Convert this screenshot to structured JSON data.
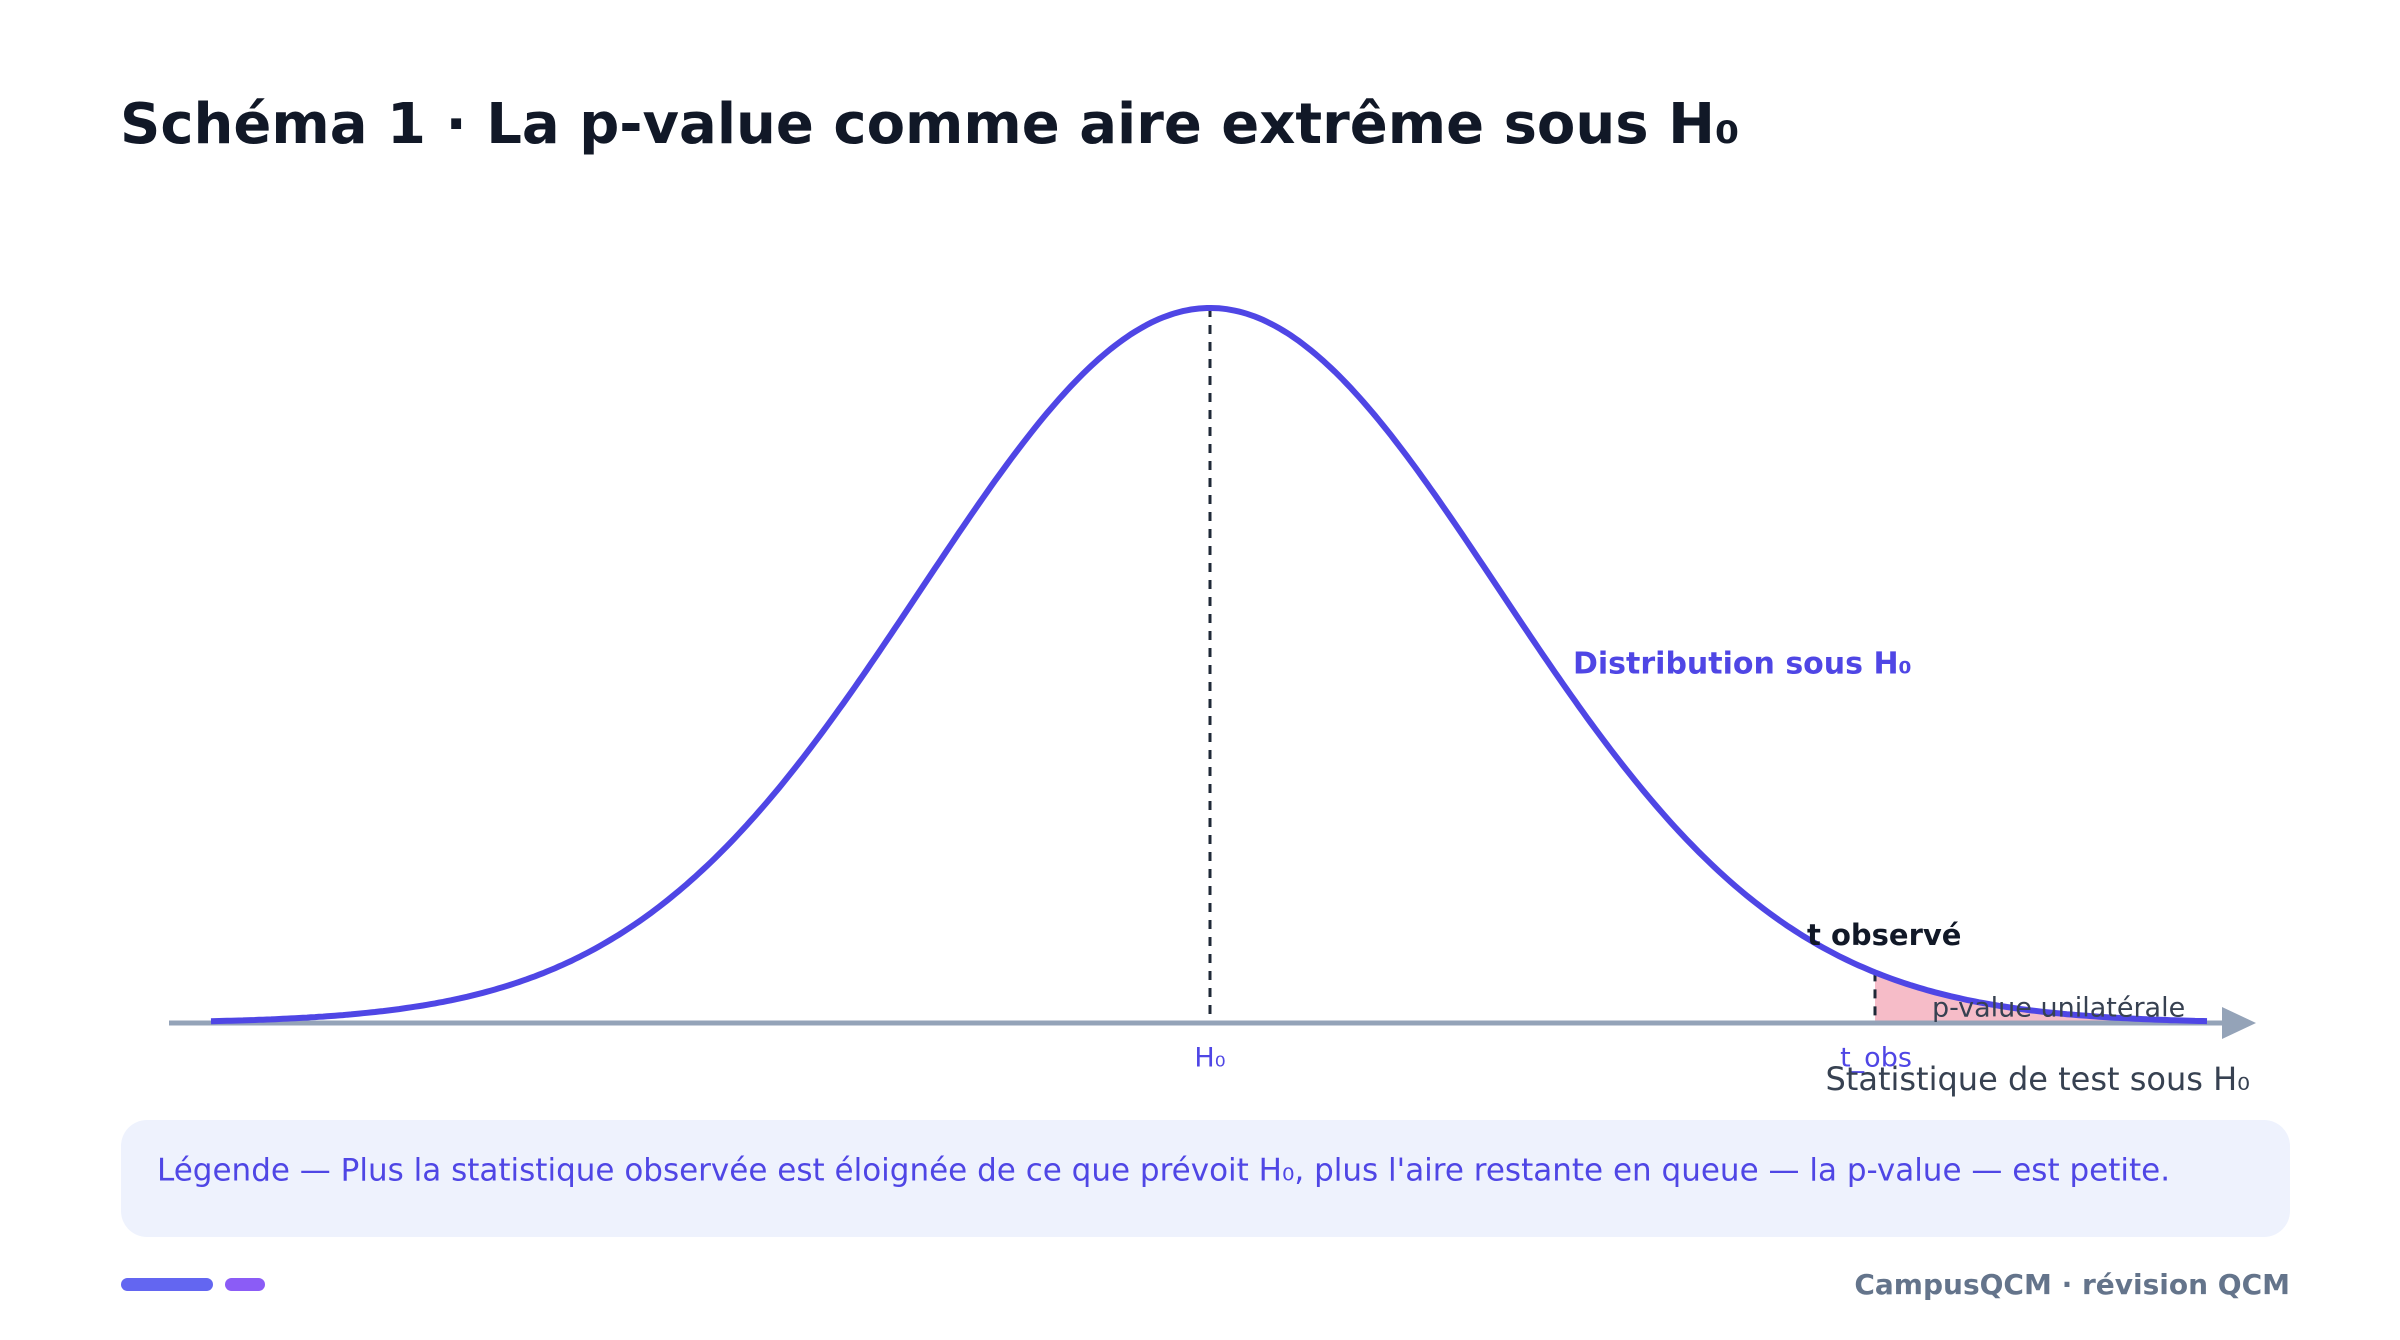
{
  "header": {
    "title": "Schéma 1 · La p-value comme aire extrême sous H₀"
  },
  "diagram": {
    "curve_label": "Distribution sous H₀",
    "center_label": "H₀",
    "observed_label": "t observé",
    "observed_tick": "t_obs",
    "area_label": "p-value unilatérale",
    "axis_label": "Statistique de test sous H₀"
  },
  "legend": {
    "text": "Légende — Plus la statistique observée est éloignée de ce que prévoit H₀, plus l'aire restante en queue — la p-value — est petite."
  },
  "footer": {
    "brand": "CampusQCM · révision QCM"
  }
}
